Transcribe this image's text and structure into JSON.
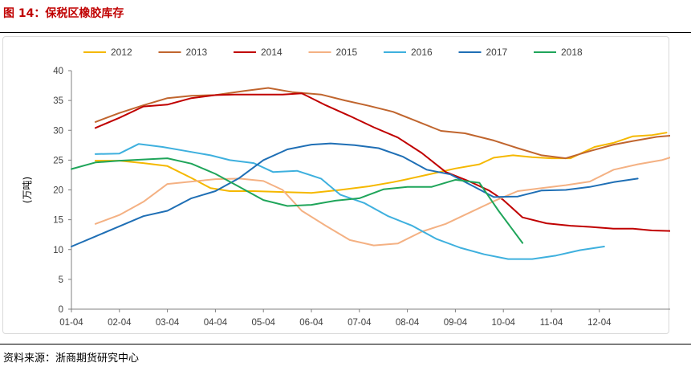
{
  "header": {
    "title": "图 14：保税区橡胶库存"
  },
  "footer": {
    "source": "资料来源：浙商期货研究中心"
  },
  "chart_data": {
    "type": "line",
    "title": "",
    "xlabel": "",
    "ylabel": "(万吨)",
    "ylim": [
      0,
      40
    ],
    "yticks": [
      0,
      5,
      10,
      15,
      20,
      25,
      30,
      35,
      40
    ],
    "x_ticks": [
      "01-04",
      "02-04",
      "03-04",
      "04-04",
      "05-04",
      "06-04",
      "07-04",
      "08-04",
      "09-04",
      "10-04",
      "11-04",
      "12-04"
    ],
    "grid": false,
    "legend_position": "top",
    "series": [
      {
        "name": "2012",
        "color": "#f5b800",
        "points": [
          [
            0.5,
            24.9
          ],
          [
            1.0,
            24.9
          ],
          [
            1.5,
            24.5
          ],
          [
            2.0,
            24.0
          ],
          [
            2.5,
            22.0
          ],
          [
            2.9,
            20.3
          ],
          [
            3.3,
            19.8
          ],
          [
            3.8,
            19.8
          ],
          [
            4.6,
            19.6
          ],
          [
            5.0,
            19.5
          ],
          [
            5.6,
            20.0
          ],
          [
            6.2,
            20.6
          ],
          [
            6.7,
            21.3
          ],
          [
            7.0,
            21.8
          ],
          [
            7.5,
            22.7
          ],
          [
            8.0,
            23.6
          ],
          [
            8.5,
            24.3
          ],
          [
            8.8,
            25.4
          ],
          [
            9.2,
            25.8
          ],
          [
            9.6,
            25.5
          ],
          [
            10.0,
            25.3
          ],
          [
            10.4,
            25.3
          ],
          [
            10.9,
            27.2
          ],
          [
            11.3,
            27.9
          ],
          [
            11.7,
            29.0
          ],
          [
            12.1,
            29.2
          ],
          [
            12.4,
            29.6
          ]
        ]
      },
      {
        "name": "2013",
        "color": "#c0652e",
        "points": [
          [
            0.5,
            31.4
          ],
          [
            1.0,
            32.9
          ],
          [
            1.5,
            34.2
          ],
          [
            2.0,
            35.4
          ],
          [
            2.5,
            35.8
          ],
          [
            3.0,
            35.9
          ],
          [
            3.6,
            36.6
          ],
          [
            4.1,
            37.1
          ],
          [
            4.6,
            36.4
          ],
          [
            5.2,
            36.0
          ],
          [
            5.7,
            35.0
          ],
          [
            6.2,
            34.1
          ],
          [
            6.7,
            33.1
          ],
          [
            7.2,
            31.5
          ],
          [
            7.7,
            29.9
          ],
          [
            8.2,
            29.5
          ],
          [
            8.8,
            28.3
          ],
          [
            9.3,
            27.0
          ],
          [
            9.8,
            25.8
          ],
          [
            10.3,
            25.3
          ],
          [
            10.8,
            26.5
          ],
          [
            11.3,
            27.6
          ],
          [
            11.7,
            28.2
          ],
          [
            12.2,
            28.9
          ],
          [
            12.5,
            29.1
          ]
        ]
      },
      {
        "name": "2014",
        "color": "#c00000",
        "points": [
          [
            0.5,
            30.4
          ],
          [
            1.0,
            32.1
          ],
          [
            1.5,
            34.0
          ],
          [
            2.0,
            34.3
          ],
          [
            2.5,
            35.4
          ],
          [
            3.0,
            35.9
          ],
          [
            3.4,
            36.0
          ],
          [
            3.9,
            36.0
          ],
          [
            4.4,
            36.0
          ],
          [
            4.8,
            36.2
          ],
          [
            5.3,
            34.2
          ],
          [
            5.8,
            32.4
          ],
          [
            6.3,
            30.5
          ],
          [
            6.8,
            28.8
          ],
          [
            7.3,
            26.2
          ],
          [
            7.8,
            23.0
          ],
          [
            8.3,
            21.4
          ],
          [
            8.7,
            19.9
          ],
          [
            9.0,
            18.3
          ],
          [
            9.4,
            15.4
          ],
          [
            9.9,
            14.4
          ],
          [
            10.4,
            14.0
          ],
          [
            10.8,
            13.8
          ],
          [
            11.3,
            13.5
          ],
          [
            11.7,
            13.5
          ],
          [
            12.1,
            13.2
          ],
          [
            12.5,
            13.1
          ]
        ]
      },
      {
        "name": "2015",
        "color": "#f4b183",
        "points": [
          [
            0.5,
            14.3
          ],
          [
            1.0,
            15.8
          ],
          [
            1.5,
            18.0
          ],
          [
            2.0,
            21.0
          ],
          [
            2.5,
            21.4
          ],
          [
            3.0,
            21.8
          ],
          [
            3.5,
            21.9
          ],
          [
            4.0,
            21.5
          ],
          [
            4.4,
            20.0
          ],
          [
            4.8,
            16.5
          ],
          [
            5.3,
            14.0
          ],
          [
            5.8,
            11.6
          ],
          [
            6.3,
            10.7
          ],
          [
            6.8,
            11.0
          ],
          [
            7.3,
            13.0
          ],
          [
            7.8,
            14.3
          ],
          [
            8.3,
            16.2
          ],
          [
            8.8,
            18.1
          ],
          [
            9.3,
            19.8
          ],
          [
            9.8,
            20.3
          ],
          [
            10.3,
            20.8
          ],
          [
            10.8,
            21.4
          ],
          [
            11.3,
            23.4
          ],
          [
            11.8,
            24.3
          ],
          [
            12.3,
            25.0
          ],
          [
            12.5,
            25.5
          ]
        ]
      },
      {
        "name": "2016",
        "color": "#3eb0de",
        "points": [
          [
            0.5,
            26.0
          ],
          [
            1.0,
            26.1
          ],
          [
            1.4,
            27.7
          ],
          [
            1.9,
            27.2
          ],
          [
            2.4,
            26.5
          ],
          [
            2.9,
            25.8
          ],
          [
            3.3,
            25.0
          ],
          [
            3.8,
            24.5
          ],
          [
            4.2,
            23.0
          ],
          [
            4.7,
            23.2
          ],
          [
            5.2,
            21.9
          ],
          [
            5.6,
            19.2
          ],
          [
            6.1,
            17.8
          ],
          [
            6.6,
            15.6
          ],
          [
            7.1,
            14.0
          ],
          [
            7.6,
            11.8
          ],
          [
            8.1,
            10.3
          ],
          [
            8.6,
            9.2
          ],
          [
            9.1,
            8.4
          ],
          [
            9.6,
            8.4
          ],
          [
            10.1,
            9.0
          ],
          [
            10.6,
            9.9
          ],
          [
            11.1,
            10.5
          ]
        ]
      },
      {
        "name": "2017",
        "color": "#1f6fb5",
        "points": [
          [
            0.0,
            10.5
          ],
          [
            0.5,
            12.2
          ],
          [
            1.0,
            13.9
          ],
          [
            1.5,
            15.6
          ],
          [
            2.0,
            16.5
          ],
          [
            2.5,
            18.6
          ],
          [
            3.0,
            19.8
          ],
          [
            3.5,
            22.0
          ],
          [
            4.0,
            25.0
          ],
          [
            4.5,
            26.8
          ],
          [
            5.0,
            27.6
          ],
          [
            5.4,
            27.8
          ],
          [
            5.9,
            27.5
          ],
          [
            6.4,
            27.0
          ],
          [
            6.9,
            25.6
          ],
          [
            7.4,
            23.4
          ],
          [
            7.9,
            22.6
          ],
          [
            8.4,
            20.5
          ],
          [
            8.8,
            18.8
          ],
          [
            9.3,
            18.9
          ],
          [
            9.8,
            19.9
          ],
          [
            10.3,
            20.0
          ],
          [
            10.8,
            20.5
          ],
          [
            11.3,
            21.3
          ],
          [
            11.8,
            21.9
          ]
        ]
      },
      {
        "name": "2018",
        "color": "#1fa55a",
        "points": [
          [
            0.0,
            23.5
          ],
          [
            0.5,
            24.6
          ],
          [
            1.0,
            24.9
          ],
          [
            1.5,
            25.1
          ],
          [
            2.0,
            25.3
          ],
          [
            2.5,
            24.4
          ],
          [
            3.0,
            22.7
          ],
          [
            3.5,
            20.5
          ],
          [
            4.0,
            18.3
          ],
          [
            4.5,
            17.3
          ],
          [
            5.0,
            17.5
          ],
          [
            5.5,
            18.2
          ],
          [
            6.0,
            18.6
          ],
          [
            6.5,
            20.1
          ],
          [
            7.0,
            20.5
          ],
          [
            7.5,
            20.5
          ],
          [
            8.0,
            21.7
          ],
          [
            8.5,
            21.2
          ],
          [
            8.9,
            16.5
          ],
          [
            9.4,
            11.1
          ]
        ]
      }
    ]
  }
}
